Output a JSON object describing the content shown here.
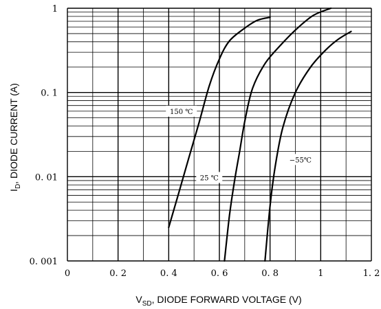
{
  "chart_data": {
    "type": "line",
    "xlabel": {
      "main": "V",
      "sub": "SD",
      "rest": ", DIODE FORWARD VOLTAGE (V)"
    },
    "ylabel": {
      "main": "I",
      "sub": "D",
      "rest": ", DIODE CURRENT (A)"
    },
    "xlim": [
      0,
      1.2
    ],
    "ylim": [
      0.001,
      1
    ],
    "yscale": "log",
    "grid": true,
    "x_ticks": [
      {
        "value": 0,
        "label": "0"
      },
      {
        "value": 0.2,
        "label": "0. 2"
      },
      {
        "value": 0.4,
        "label": "0. 4"
      },
      {
        "value": 0.6,
        "label": "0. 6"
      },
      {
        "value": 0.8,
        "label": "0. 8"
      },
      {
        "value": 1.0,
        "label": "1"
      },
      {
        "value": 1.2,
        "label": "1. 2"
      }
    ],
    "y_ticks": [
      {
        "value": 1,
        "label": "1"
      },
      {
        "value": 0.1,
        "label": "0. 1"
      },
      {
        "value": 0.01,
        "label": "0. 01"
      },
      {
        "value": 0.001,
        "label": "0. 001"
      }
    ],
    "series": [
      {
        "name": "150 ℃",
        "points": [
          [
            0.4,
            0.0025
          ],
          [
            0.44,
            0.0065
          ],
          [
            0.48,
            0.017
          ],
          [
            0.52,
            0.044
          ],
          [
            0.56,
            0.12
          ],
          [
            0.6,
            0.25
          ],
          [
            0.64,
            0.41
          ],
          [
            0.7,
            0.58
          ],
          [
            0.75,
            0.72
          ],
          [
            0.8,
            0.78
          ]
        ]
      },
      {
        "name": "25 ℃",
        "points": [
          [
            0.62,
            0.001
          ],
          [
            0.64,
            0.0035
          ],
          [
            0.66,
            0.009
          ],
          [
            0.68,
            0.02
          ],
          [
            0.7,
            0.045
          ],
          [
            0.73,
            0.11
          ],
          [
            0.78,
            0.22
          ],
          [
            0.84,
            0.36
          ],
          [
            0.9,
            0.55
          ],
          [
            0.97,
            0.82
          ],
          [
            1.04,
            1.0
          ]
        ]
      },
      {
        "name": "−55℃",
        "points": [
          [
            0.78,
            0.001
          ],
          [
            0.8,
            0.0045
          ],
          [
            0.82,
            0.013
          ],
          [
            0.85,
            0.038
          ],
          [
            0.9,
            0.1
          ],
          [
            0.96,
            0.2
          ],
          [
            1.02,
            0.32
          ],
          [
            1.07,
            0.43
          ],
          [
            1.12,
            0.53
          ]
        ]
      }
    ],
    "annotations": [
      {
        "text": "150 ℃",
        "x": 0.45,
        "y": 0.06
      },
      {
        "text": "25 ℃",
        "x": 0.56,
        "y": 0.0098
      },
      {
        "text": "−55℃",
        "x": 0.92,
        "y": 0.016
      }
    ]
  }
}
